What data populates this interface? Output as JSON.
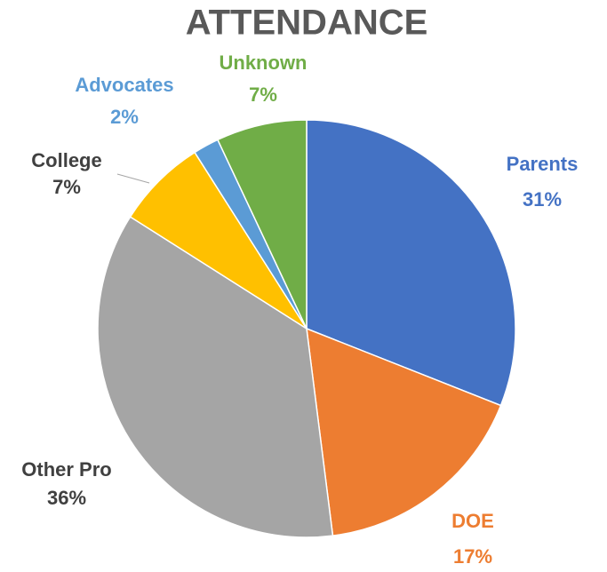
{
  "chart_data": {
    "type": "pie",
    "title": "ATTENDANCE",
    "categories": [
      "Parents",
      "DOE",
      "Other Pro",
      "College",
      "Advocates",
      "Unknown"
    ],
    "values": [
      31,
      17,
      36,
      7,
      2,
      7
    ],
    "value_labels": [
      "31%",
      "17%",
      "36%",
      "7%",
      "2%",
      "7%"
    ],
    "colors": [
      "#4472c4",
      "#ed7d31",
      "#a5a5a5",
      "#ffc000",
      "#5b9bd5",
      "#70ad47"
    ],
    "label_colors": [
      "#4472c4",
      "#ed7d31",
      "#404040",
      "#404040",
      "#5b9bd5",
      "#70ad47"
    ]
  }
}
